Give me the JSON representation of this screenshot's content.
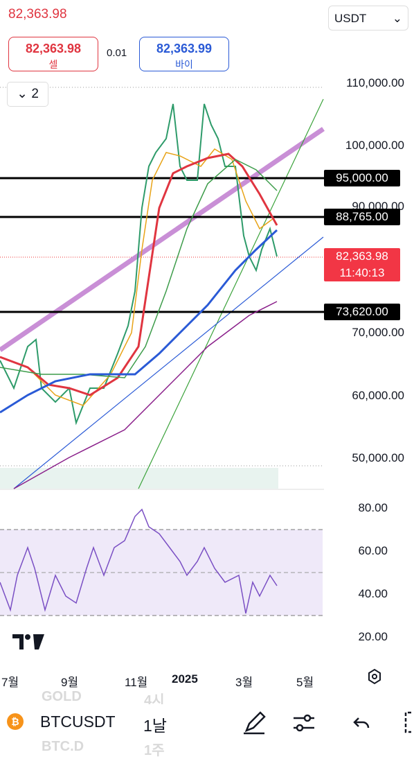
{
  "header": {
    "last_price": "82,363.98",
    "currency": "USDT",
    "sell": {
      "price": "82,363.98",
      "label": "셀"
    },
    "spread": "0.01",
    "buy": {
      "price": "82,363.99",
      "label": "바이"
    },
    "indicator_count": "2"
  },
  "price_axis": [
    "110,000.00",
    "100,000.00",
    "90,000.00",
    "70,000.00",
    "60,000.00",
    "50,000.00"
  ],
  "price_lines": [
    "95,000.00",
    "88,765.00",
    "73,620.00"
  ],
  "current_price": {
    "price": "82,363.98",
    "countdown": "11:40:13"
  },
  "rsi_axis": [
    "80.00",
    "60.00",
    "40.00",
    "20.00"
  ],
  "time_axis": [
    "7월",
    "9월",
    "11월",
    "2025",
    "3월",
    "5월"
  ],
  "watchlist_hint": {
    "above": [
      "GOLD",
      "4시"
    ],
    "below": [
      "BTC.D",
      "1주"
    ]
  },
  "toolbar": {
    "symbol": "BTCUSDT",
    "interval": "1날"
  }
}
